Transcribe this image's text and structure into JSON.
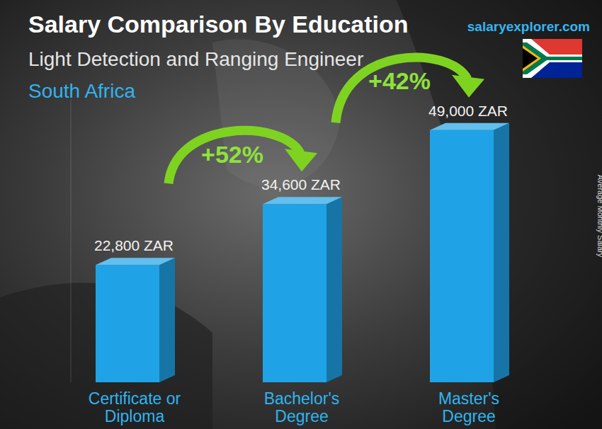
{
  "chart_data": {
    "type": "bar",
    "title": "Salary Comparison By Education",
    "subtitle": "Light Detection and Ranging Engineer",
    "region": "South Africa",
    "source": "salaryexplorer.com",
    "y_label": "Average Monthly Salary",
    "categories": [
      "Certificate or Diploma",
      "Bachelor's Degree",
      "Master's Degree"
    ],
    "values": [
      22800,
      34600,
      49000
    ],
    "value_labels": [
      "22,800 ZAR",
      "34,600 ZAR",
      "49,000 ZAR"
    ],
    "color": "#1fa3e6",
    "ylim": [
      0,
      55000
    ],
    "yticks": [],
    "grid": false,
    "tick_labels": "x",
    "data_labels": true,
    "annotations": [
      "+52%",
      "+42%"
    ]
  }
}
